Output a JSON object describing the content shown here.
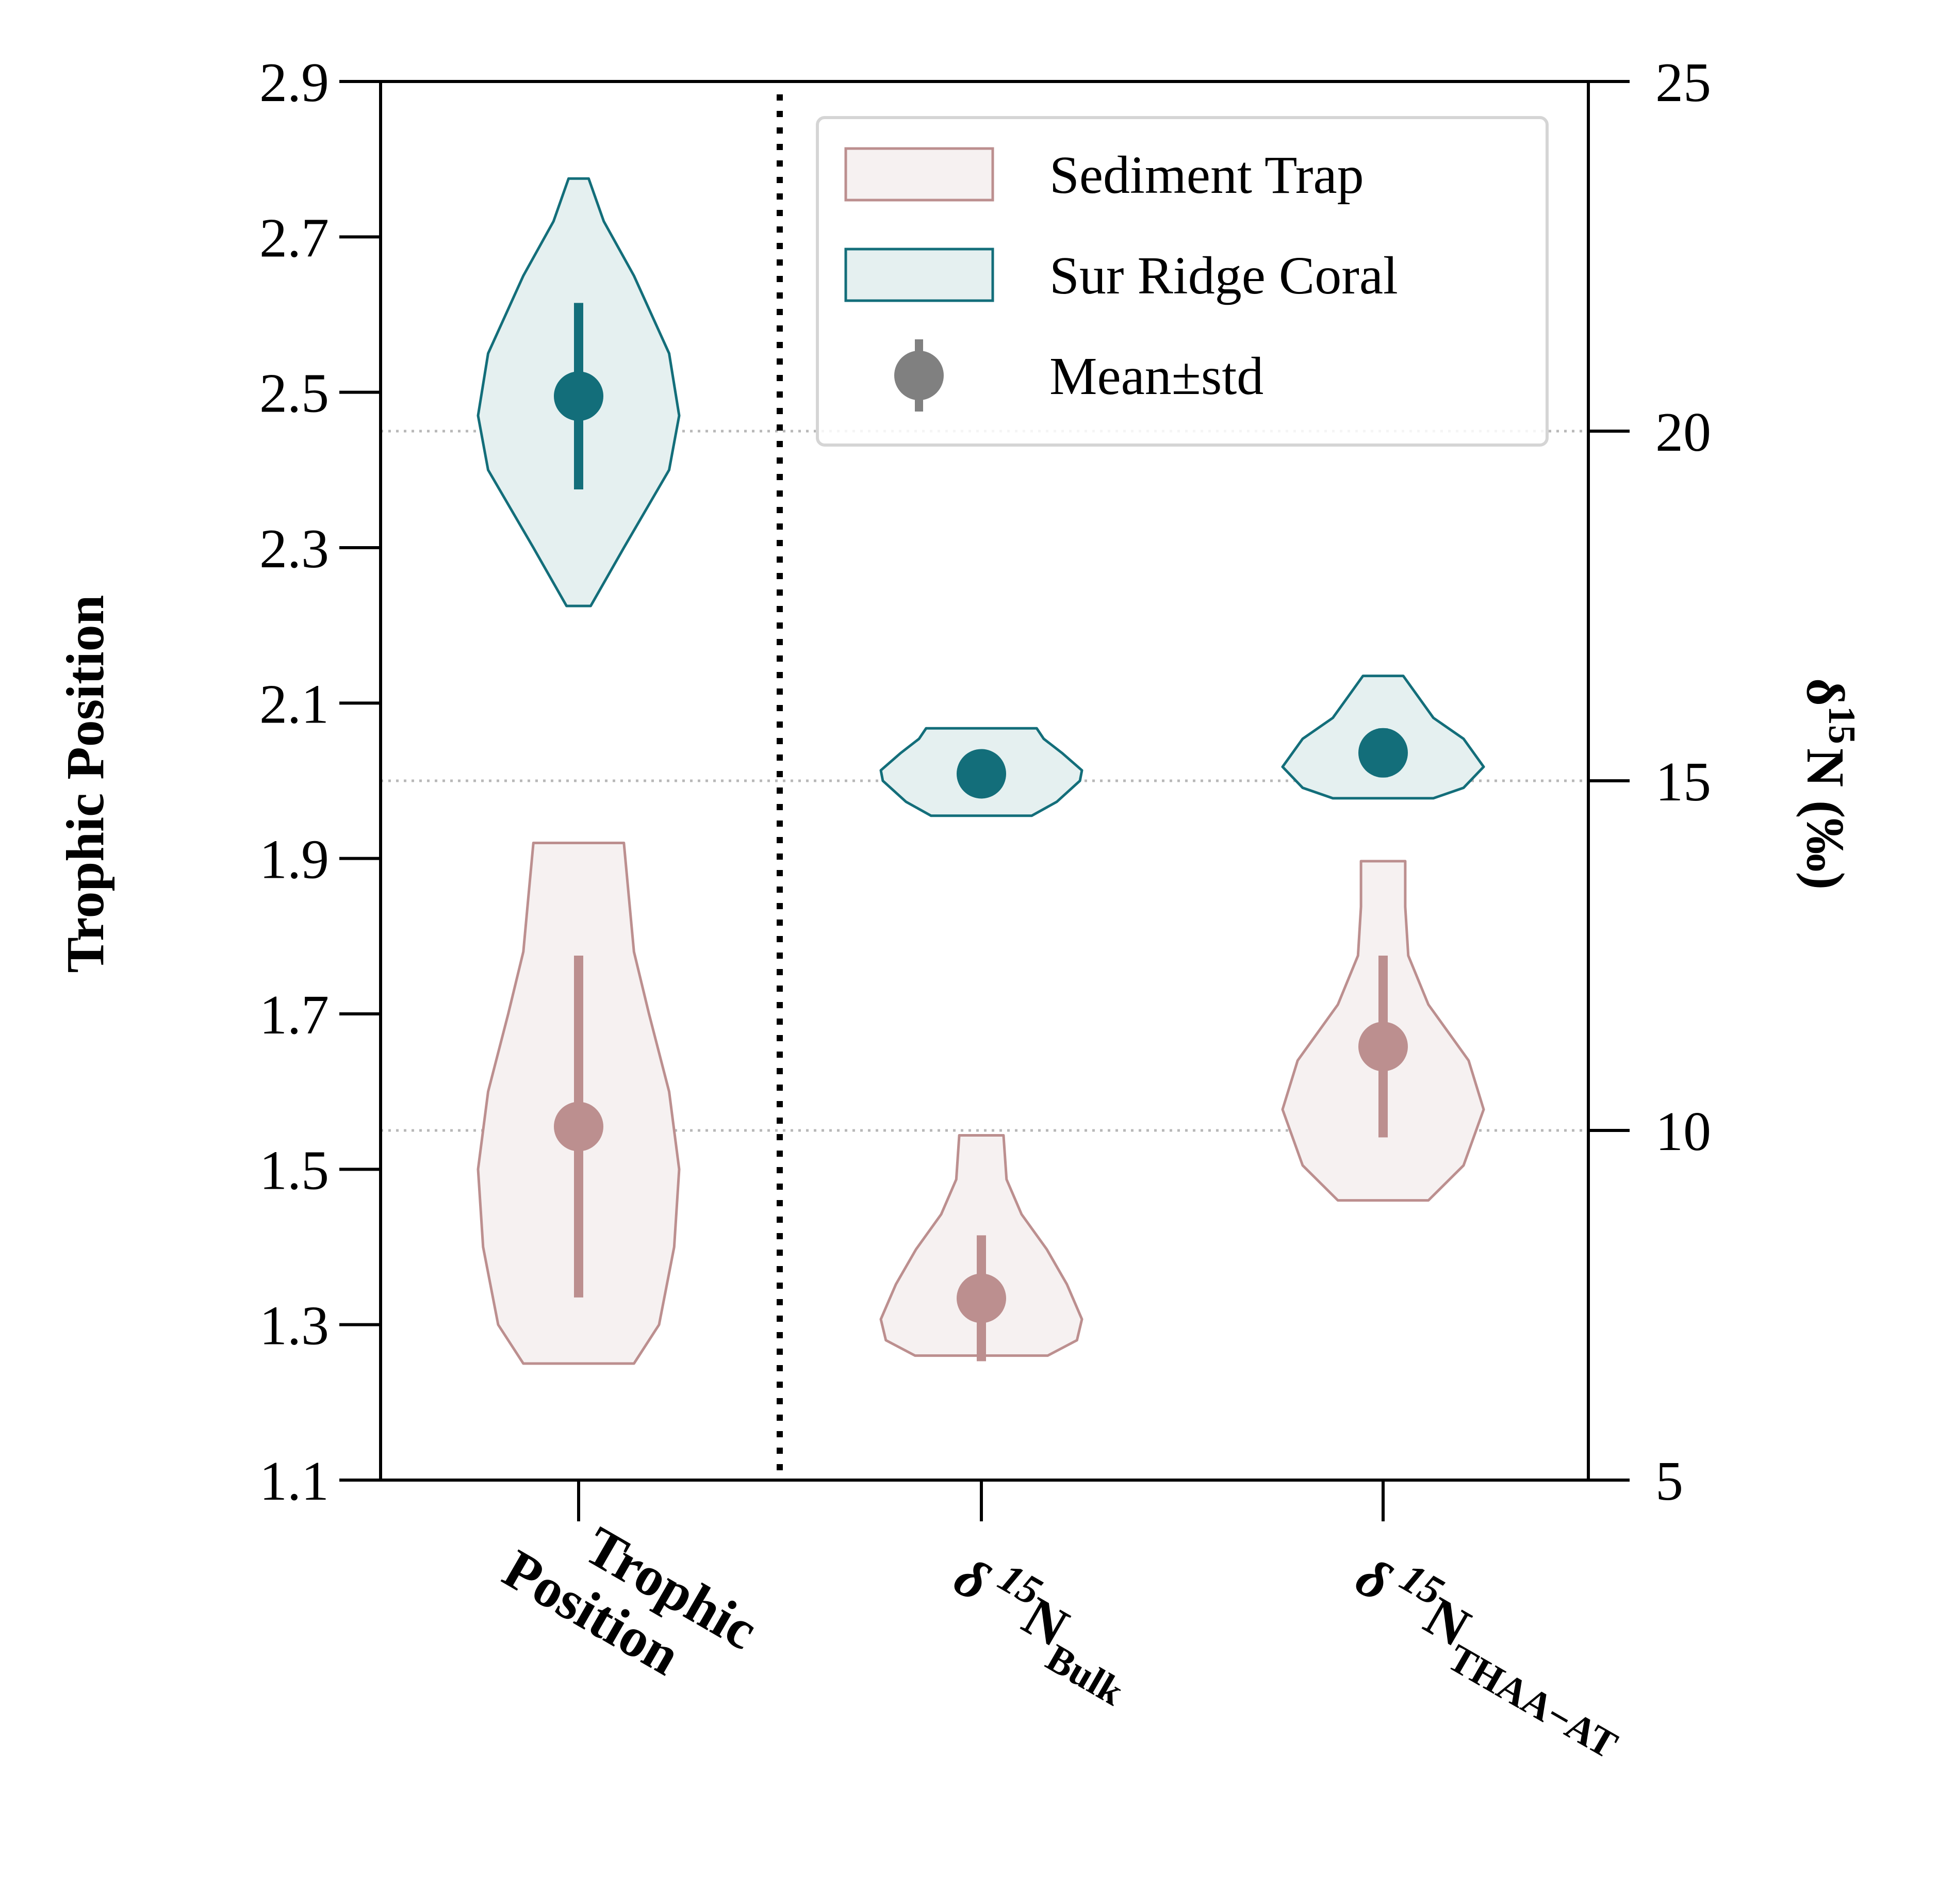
{
  "chart_data": {
    "type": "violin",
    "left_axis": {
      "label": "Trophic Position",
      "ticks": [
        "1.1",
        "1.3",
        "1.5",
        "1.7",
        "1.9",
        "2.1",
        "2.3",
        "2.5",
        "2.7",
        "2.9"
      ],
      "ylim": [
        1.1,
        2.9
      ]
    },
    "right_axis": {
      "label_delta": "δ",
      "label_sup": "15",
      "label_rest": "N (‰)",
      "ticks": [
        "5",
        "10",
        "15",
        "20",
        "25"
      ],
      "ylim": [
        5,
        25
      ]
    },
    "categories": [
      {
        "id": "tp",
        "main": "Trophic",
        "second": "Position",
        "axis": "left"
      },
      {
        "id": "bulk",
        "main": "δ",
        "sup": "15",
        "base": "N",
        "sub": "Bulk",
        "axis": "right"
      },
      {
        "id": "thaa",
        "main": "δ",
        "sup": "15",
        "base": "N",
        "sub": "THAA−AT",
        "axis": "right"
      }
    ],
    "series": [
      {
        "name": "Sediment Trap",
        "color": "#bc8f8f",
        "fill": "#f6f1f1",
        "violins": [
          {
            "category": "tp",
            "min": 1.25,
            "max": 1.92,
            "mean": 1.555,
            "std": 0.22,
            "profile": [
              [
                1.25,
                0.55
              ],
              [
                1.3,
                0.8
              ],
              [
                1.4,
                0.95
              ],
              [
                1.5,
                1.0
              ],
              [
                1.6,
                0.9
              ],
              [
                1.7,
                0.7
              ],
              [
                1.78,
                0.55
              ],
              [
                1.85,
                0.5
              ],
              [
                1.92,
                0.45
              ]
            ]
          },
          {
            "category": "bulk",
            "min": 6.78,
            "max": 9.93,
            "mean": 7.6,
            "std": 0.9,
            "profile": [
              [
                6.78,
                0.66
              ],
              [
                7.0,
                0.95
              ],
              [
                7.3,
                1.0
              ],
              [
                7.8,
                0.85
              ],
              [
                8.3,
                0.65
              ],
              [
                8.8,
                0.4
              ],
              [
                9.3,
                0.25
              ],
              [
                9.93,
                0.22
              ]
            ]
          },
          {
            "category": "thaa",
            "min": 9.0,
            "max": 13.85,
            "mean": 11.2,
            "std": 1.3,
            "profile": [
              [
                9.0,
                0.45
              ],
              [
                9.5,
                0.8
              ],
              [
                10.3,
                1.0
              ],
              [
                11.0,
                0.85
              ],
              [
                11.8,
                0.45
              ],
              [
                12.5,
                0.25
              ],
              [
                13.2,
                0.22
              ],
              [
                13.85,
                0.22
              ]
            ]
          }
        ]
      },
      {
        "name": "Sur Ridge Coral",
        "color": "#136e7a",
        "fill": "#e5f0f0",
        "violins": [
          {
            "category": "tp",
            "min": 2.225,
            "max": 2.775,
            "mean": 2.495,
            "std": 0.12,
            "profile": [
              [
                2.225,
                0.12
              ],
              [
                2.3,
                0.45
              ],
              [
                2.4,
                0.9
              ],
              [
                2.47,
                1.0
              ],
              [
                2.55,
                0.9
              ],
              [
                2.65,
                0.55
              ],
              [
                2.72,
                0.25
              ],
              [
                2.775,
                0.1
              ]
            ]
          },
          {
            "category": "bulk",
            "min": 14.5,
            "max": 15.75,
            "mean": 15.1,
            "std": 0.12,
            "profile": [
              [
                14.5,
                0.5
              ],
              [
                14.7,
                0.75
              ],
              [
                15.0,
                0.98
              ],
              [
                15.15,
                1.0
              ],
              [
                15.4,
                0.8
              ],
              [
                15.6,
                0.62
              ],
              [
                15.75,
                0.55
              ]
            ]
          },
          {
            "category": "thaa",
            "min": 14.75,
            "max": 16.5,
            "mean": 15.4,
            "std": 0.35,
            "profile": [
              [
                14.75,
                0.5
              ],
              [
                14.9,
                0.8
              ],
              [
                15.2,
                1.0
              ],
              [
                15.6,
                0.8
              ],
              [
                15.9,
                0.5
              ],
              [
                16.2,
                0.35
              ],
              [
                16.5,
                0.2
              ]
            ]
          }
        ]
      }
    ],
    "legend": {
      "position": "upper-right",
      "entries": [
        "Sediment Trap",
        "Sur Ridge Coral",
        "Mean±std"
      ],
      "mean_marker_color": "#808080"
    },
    "reference_lines_right_axis": [
      10,
      15,
      20
    ],
    "divider": "dotted vertical line between Trophic Position and δ15N groups",
    "grid": false
  }
}
